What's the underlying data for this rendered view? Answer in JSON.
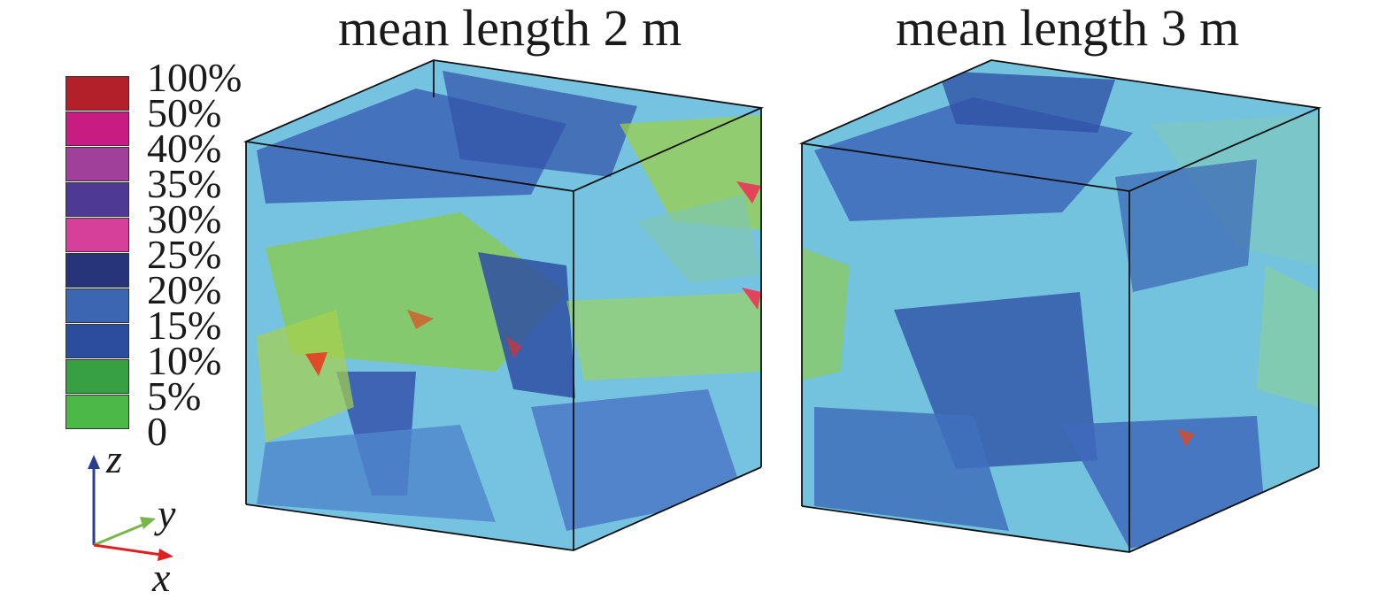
{
  "titles": {
    "left": "mean length 2 m",
    "right": "mean length 3 m"
  },
  "legend": {
    "items": [
      {
        "label": "100%",
        "color": "#b3202a"
      },
      {
        "label": "50%",
        "color": "#c81c82"
      },
      {
        "label": "40%",
        "color": "#a0409a"
      },
      {
        "label": "35%",
        "color": "#4e3a94"
      },
      {
        "label": "30%",
        "color": "#d6409a"
      },
      {
        "label": "25%",
        "color": "#28347a"
      },
      {
        "label": "20%",
        "color": "#3c66b2"
      },
      {
        "label": "15%",
        "color": "#2c4c9e"
      },
      {
        "label": "10%",
        "color": "#37a043"
      },
      {
        "label": "5%",
        "color": "#4cb848"
      },
      {
        "label": "0",
        "color": null
      }
    ]
  },
  "axes": {
    "z": "z",
    "y": "y",
    "x": "x",
    "z_color": "#2a3f8f",
    "y_color": "#7ab648",
    "x_color": "#e02020"
  }
}
